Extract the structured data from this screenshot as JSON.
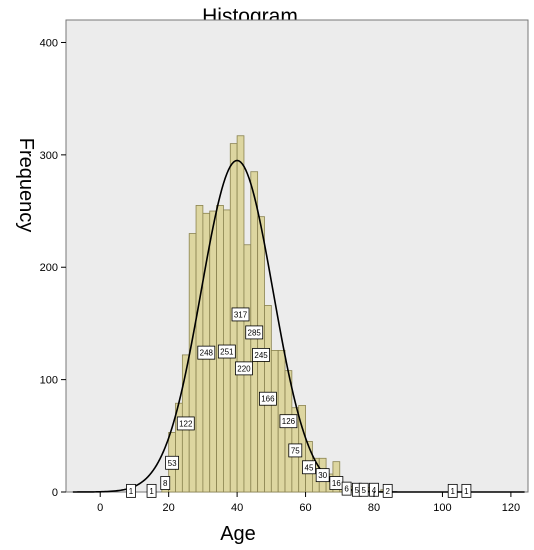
{
  "chart_data": {
    "type": "bar",
    "title": "Histogram",
    "xlabel": "Age",
    "ylabel": "Frequency",
    "xlim": [
      -10,
      125
    ],
    "ylim": [
      0,
      420
    ],
    "xticks": [
      0,
      20,
      40,
      60,
      80,
      100,
      120
    ],
    "yticks": [
      0,
      100,
      200,
      300,
      400
    ],
    "grid": false,
    "colors": {
      "plot_bg": "#ececec",
      "bar_fill": "#ddd6a0",
      "bar_stroke": "#8a8350",
      "curve": "#000000"
    },
    "bin_width": 2,
    "bins": [
      {
        "x0": 8,
        "count": 1
      },
      {
        "x0": 14,
        "count": 1
      },
      {
        "x0": 18,
        "count": 8
      },
      {
        "x0": 20,
        "count": 53
      },
      {
        "x0": 22,
        "count": 79
      },
      {
        "x0": 24,
        "count": 122
      },
      {
        "x0": 26,
        "count": 230
      },
      {
        "x0": 28,
        "count": 255
      },
      {
        "x0": 30,
        "count": 248
      },
      {
        "x0": 32,
        "count": 250
      },
      {
        "x0": 34,
        "count": 255
      },
      {
        "x0": 36,
        "count": 251
      },
      {
        "x0": 38,
        "count": 310
      },
      {
        "x0": 40,
        "count": 317
      },
      {
        "x0": 42,
        "count": 220
      },
      {
        "x0": 44,
        "count": 285
      },
      {
        "x0": 46,
        "count": 245
      },
      {
        "x0": 48,
        "count": 166
      },
      {
        "x0": 50,
        "count": 126
      },
      {
        "x0": 52,
        "count": 126
      },
      {
        "x0": 54,
        "count": 108
      },
      {
        "x0": 56,
        "count": 75
      },
      {
        "x0": 58,
        "count": 77
      },
      {
        "x0": 60,
        "count": 45
      },
      {
        "x0": 62,
        "count": 30
      },
      {
        "x0": 64,
        "count": 30
      },
      {
        "x0": 66,
        "count": 16
      },
      {
        "x0": 68,
        "count": 27
      },
      {
        "x0": 70,
        "count": 6
      },
      {
        "x0": 72,
        "count": 5
      },
      {
        "x0": 74,
        "count": 5
      },
      {
        "x0": 76,
        "count": 5
      },
      {
        "x0": 78,
        "count": 4
      },
      {
        "x0": 82,
        "count": 2
      },
      {
        "x0": 102,
        "count": 1
      },
      {
        "x0": 106,
        "count": 1
      }
    ],
    "data_labels": [
      {
        "x": 9,
        "y": 1,
        "text": "1"
      },
      {
        "x": 15,
        "y": 1,
        "text": "1"
      },
      {
        "x": 19,
        "y": 8,
        "text": "8"
      },
      {
        "x": 21,
        "y": 26,
        "text": "53"
      },
      {
        "x": 25,
        "y": 61,
        "text": "122"
      },
      {
        "x": 31,
        "y": 124,
        "text": "248"
      },
      {
        "x": 37,
        "y": 125,
        "text": "251"
      },
      {
        "x": 41,
        "y": 158,
        "text": "317"
      },
      {
        "x": 42,
        "y": 110,
        "text": "220"
      },
      {
        "x": 45,
        "y": 142,
        "text": "285"
      },
      {
        "x": 47,
        "y": 122,
        "text": "245"
      },
      {
        "x": 49,
        "y": 83,
        "text": "166"
      },
      {
        "x": 55,
        "y": 63,
        "text": "126"
      },
      {
        "x": 57,
        "y": 37,
        "text": "75"
      },
      {
        "x": 61,
        "y": 22,
        "text": "45"
      },
      {
        "x": 65,
        "y": 15,
        "text": "30"
      },
      {
        "x": 69,
        "y": 8,
        "text": "16"
      },
      {
        "x": 72,
        "y": 3,
        "text": "6"
      },
      {
        "x": 75,
        "y": 2,
        "text": "5"
      },
      {
        "x": 77,
        "y": 2,
        "text": "5"
      },
      {
        "x": 80,
        "y": 2,
        "text": "4"
      },
      {
        "x": 84,
        "y": 1,
        "text": "2"
      },
      {
        "x": 103,
        "y": 1,
        "text": "1"
      },
      {
        "x": 107,
        "y": 1,
        "text": "1"
      }
    ],
    "normal_curve": {
      "mean": 40,
      "sd": 10.5,
      "peak": 295
    }
  }
}
